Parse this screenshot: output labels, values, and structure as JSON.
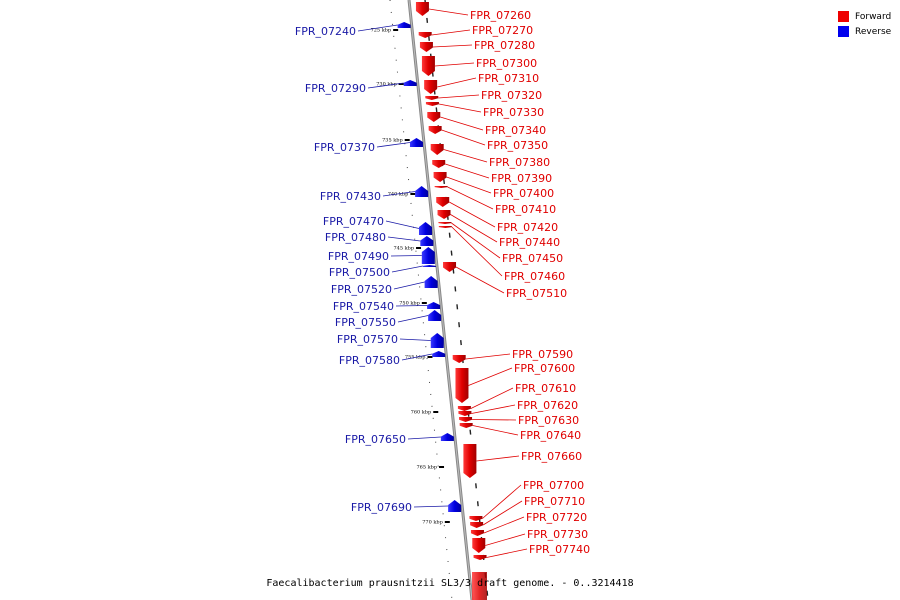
{
  "legend": {
    "forward": {
      "label": "Forward",
      "color": "#ee0000"
    },
    "reverse": {
      "label": "Reverse",
      "color": "#0000ee"
    }
  },
  "caption": "Faecalibacterium prausnitzii SL3/3 draft genome. - 0..3214418",
  "scale_marks": [
    "725 kbp",
    "730 kbp",
    "735 kbp",
    "740 kbp",
    "745 kbp",
    "750 kbp",
    "755 kbp",
    "760 kbp",
    "765 kbp",
    "770 kbp"
  ],
  "forward_genes": [
    "FPR_07260",
    "FPR_07270",
    "FPR_07280",
    "FPR_07300",
    "FPR_07310",
    "FPR_07320",
    "FPR_07330",
    "FPR_07340",
    "FPR_07350",
    "FPR_07380",
    "FPR_07390",
    "FPR_07400",
    "FPR_07410",
    "FPR_07420",
    "FPR_07440",
    "FPR_07450",
    "FPR_07460",
    "FPR_07510",
    "FPR_07590",
    "FPR_07600",
    "FPR_07610",
    "FPR_07620",
    "FPR_07630",
    "FPR_07640",
    "FPR_07660",
    "FPR_07700",
    "FPR_07710",
    "FPR_07720",
    "FPR_07730",
    "FPR_07740"
  ],
  "reverse_genes": [
    "FPR_07240",
    "FPR_07290",
    "FPR_07370",
    "FPR_07430",
    "FPR_07470",
    "FPR_07480",
    "FPR_07490",
    "FPR_07500",
    "FPR_07520",
    "FPR_07540",
    "FPR_07550",
    "FPR_07570",
    "FPR_07580",
    "FPR_07650",
    "FPR_07690"
  ]
}
